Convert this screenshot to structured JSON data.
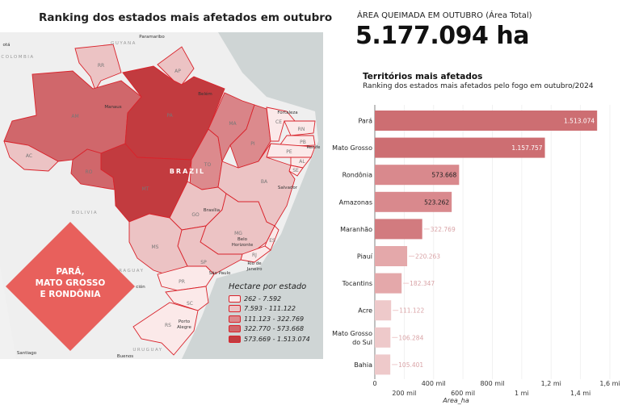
{
  "map": {
    "title": "Ranking dos estados mais afetados em outubro",
    "highlight": [
      "PARÁ,",
      "MATO GROSSO",
      "E RONDÔNIA"
    ],
    "country_label": "BRAZIL",
    "neighbor_labels": [
      "Paramaribo",
      "GUYANA",
      "COLOMBIA",
      "otá",
      "BOLIVIA",
      "PARAGUAY",
      "URUGUAY",
      "Santiago",
      "Buenos",
      "ción"
    ],
    "city_labels": [
      "Manaus",
      "Belém",
      "Fortaleza",
      "Recife",
      "Salvador",
      "Brasília",
      "Belo",
      "Horizonte",
      "Rio de",
      "Janeiro",
      "São Paulo",
      "Porto",
      "Alegre"
    ],
    "states": [
      "RR",
      "AP",
      "AM",
      "PA",
      "AC",
      "RO",
      "MT",
      "TO",
      "MA",
      "PI",
      "CE",
      "RN",
      "PB",
      "PE",
      "AL",
      "SE",
      "BA",
      "GO",
      "MG",
      "ES",
      "RJ",
      "SP",
      "MS",
      "PR",
      "SC",
      "RS"
    ],
    "legend": {
      "title": "Hectare por estado",
      "items": [
        {
          "label": "262 - 7.592",
          "color": "#fbe9e9"
        },
        {
          "label": "7.593 - 111.122",
          "color": "#ecc3c4"
        },
        {
          "label": "111.123 - 322.769",
          "color": "#dc8a8d"
        },
        {
          "label": "322.770 - 573.668",
          "color": "#d0676b"
        },
        {
          "label": "573.669 - 1.513.074",
          "color": "#c23b3f"
        }
      ]
    }
  },
  "kpi": {
    "label": "ÁREA QUEIMADA EM OUTUBRO (Área Total)",
    "value": "5.177.094 ha"
  },
  "chart_data": {
    "type": "bar",
    "orientation": "horizontal",
    "title": "Territórios mais afetados",
    "subtitle": "Ranking dos estados mais afetados pelo fogo em outubro/2024",
    "categories": [
      "Pará",
      "Mato Grosso",
      "Rondônia",
      "Amazonas",
      "Maranhão",
      "Piauí",
      "Tocantins",
      "Acre",
      "Mato Grosso do Sul",
      "Bahia"
    ],
    "category_lines": [
      [
        "Pará"
      ],
      [
        "Mato Grosso"
      ],
      [
        "Rondônia"
      ],
      [
        "Amazonas"
      ],
      [
        "Maranhão"
      ],
      [
        "Piauí"
      ],
      [
        "Tocantins"
      ],
      [
        "Acre"
      ],
      [
        "Mato Grosso",
        "do Sul"
      ],
      [
        "Bahia"
      ]
    ],
    "values": [
      1513074,
      1157757,
      573668,
      523262,
      322769,
      220263,
      182347,
      111122,
      106284,
      105401
    ],
    "value_labels": [
      "1.513.074",
      "1.157.757",
      "573.668",
      "523.262",
      "322.769",
      "220.263",
      "182.347",
      "111.122",
      "106.284",
      "105.401"
    ],
    "colors": [
      "#cd6e72",
      "#cd6e72",
      "#d9898d",
      "#d9898d",
      "#d27b7f",
      "#e4a8aa",
      "#e4a8aa",
      "#eec9ca",
      "#eec9ca",
      "#eec9ca"
    ],
    "xlabel": "Area_ha",
    "xlim": [
      0,
      1600000
    ],
    "xticks": [
      0,
      200000,
      400000,
      600000,
      800000,
      1000000,
      1200000,
      1400000,
      1600000
    ],
    "xtick_labels": [
      "0",
      "200 mil",
      "400 mil",
      "600 mil",
      "800 mil",
      "1 mi",
      "1,2 mi",
      "1,4 mi",
      "1,6 mi"
    ],
    "grid": true
  }
}
